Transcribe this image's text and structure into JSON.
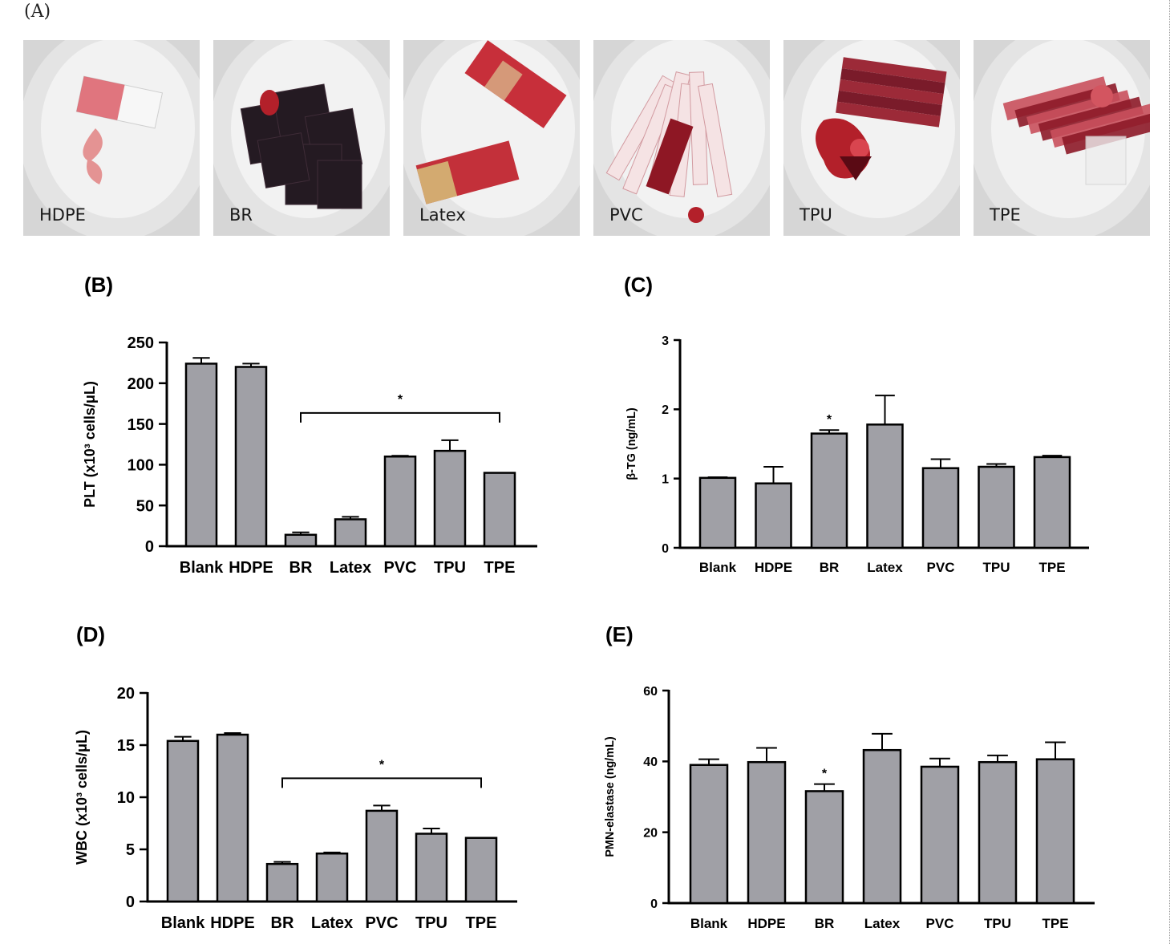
{
  "panel_a": {
    "label": "(A)",
    "photos": [
      {
        "label": "HDPE",
        "icon": "hdpe-sample-photo"
      },
      {
        "label": "BR",
        "icon": "br-sample-photo"
      },
      {
        "label": "Latex",
        "icon": "latex-sample-photo"
      },
      {
        "label": "PVC",
        "icon": "pvc-sample-photo"
      },
      {
        "label": "TPU",
        "icon": "tpu-sample-photo"
      },
      {
        "label": "TPE",
        "icon": "tpe-sample-photo"
      }
    ]
  },
  "colors": {
    "bar_fill": "#a0a0a6",
    "bar_stroke": "#000000",
    "blood_red": "#b3202a",
    "dark_clot": "#5a0a14",
    "tray": "#e4e4e4"
  },
  "chart_data": [
    {
      "id": "B",
      "panel_label": "(B)",
      "type": "bar",
      "categories": [
        "Blank",
        "HDPE",
        "BR",
        "Latex",
        "PVC",
        "TPU",
        "TPE"
      ],
      "values": [
        224,
        220,
        14,
        33,
        110,
        117,
        90
      ],
      "errors": [
        7,
        4,
        3,
        3,
        1,
        13,
        0
      ],
      "ylabel": "PLT (x10³ cells/μL)",
      "ylim": [
        0,
        250
      ],
      "yticks": [
        0,
        50,
        100,
        150,
        200,
        250
      ],
      "significance": {
        "type": "bracket",
        "from": "BR",
        "to": "TPE",
        "label": "*"
      }
    },
    {
      "id": "C",
      "panel_label": "(C)",
      "type": "bar",
      "categories": [
        "Blank",
        "HDPE",
        "BR",
        "Latex",
        "PVC",
        "TPU",
        "TPE"
      ],
      "values": [
        1.01,
        0.93,
        1.65,
        1.78,
        1.15,
        1.17,
        1.31
      ],
      "errors": [
        0.01,
        0.24,
        0.05,
        0.42,
        0.13,
        0.04,
        0.02
      ],
      "ylabel": "β-TG (ng/mL)",
      "ylim": [
        0,
        3
      ],
      "yticks": [
        0,
        1,
        2,
        3
      ],
      "significance": {
        "type": "star",
        "at": "BR",
        "label": "*"
      }
    },
    {
      "id": "D",
      "panel_label": "(D)",
      "type": "bar",
      "categories": [
        "Blank",
        "HDPE",
        "BR",
        "Latex",
        "PVC",
        "TPU",
        "TPE"
      ],
      "values": [
        15.4,
        16.0,
        3.6,
        4.6,
        8.7,
        6.5,
        6.1
      ],
      "errors": [
        0.4,
        0.15,
        0.2,
        0.1,
        0.5,
        0.5,
        0
      ],
      "ylabel": "WBC (x10³ cells/μL)",
      "ylim": [
        0,
        20
      ],
      "yticks": [
        0,
        5,
        10,
        15,
        20
      ],
      "significance": {
        "type": "bracket",
        "from": "BR",
        "to": "TPE",
        "label": "*"
      }
    },
    {
      "id": "E",
      "panel_label": "(E)",
      "type": "bar",
      "categories": [
        "Blank",
        "HDPE",
        "BR",
        "Latex",
        "PVC",
        "TPU",
        "TPE"
      ],
      "values": [
        39.0,
        39.8,
        31.6,
        43.2,
        38.5,
        39.8,
        40.6
      ],
      "errors": [
        1.6,
        4.0,
        2.0,
        4.6,
        2.3,
        1.9,
        4.8
      ],
      "ylabel": "PMN-elastase (ng/mL)",
      "ylim": [
        0,
        60
      ],
      "yticks": [
        0,
        20,
        40,
        60
      ],
      "significance": {
        "type": "star",
        "at": "BR",
        "label": "*"
      }
    }
  ]
}
